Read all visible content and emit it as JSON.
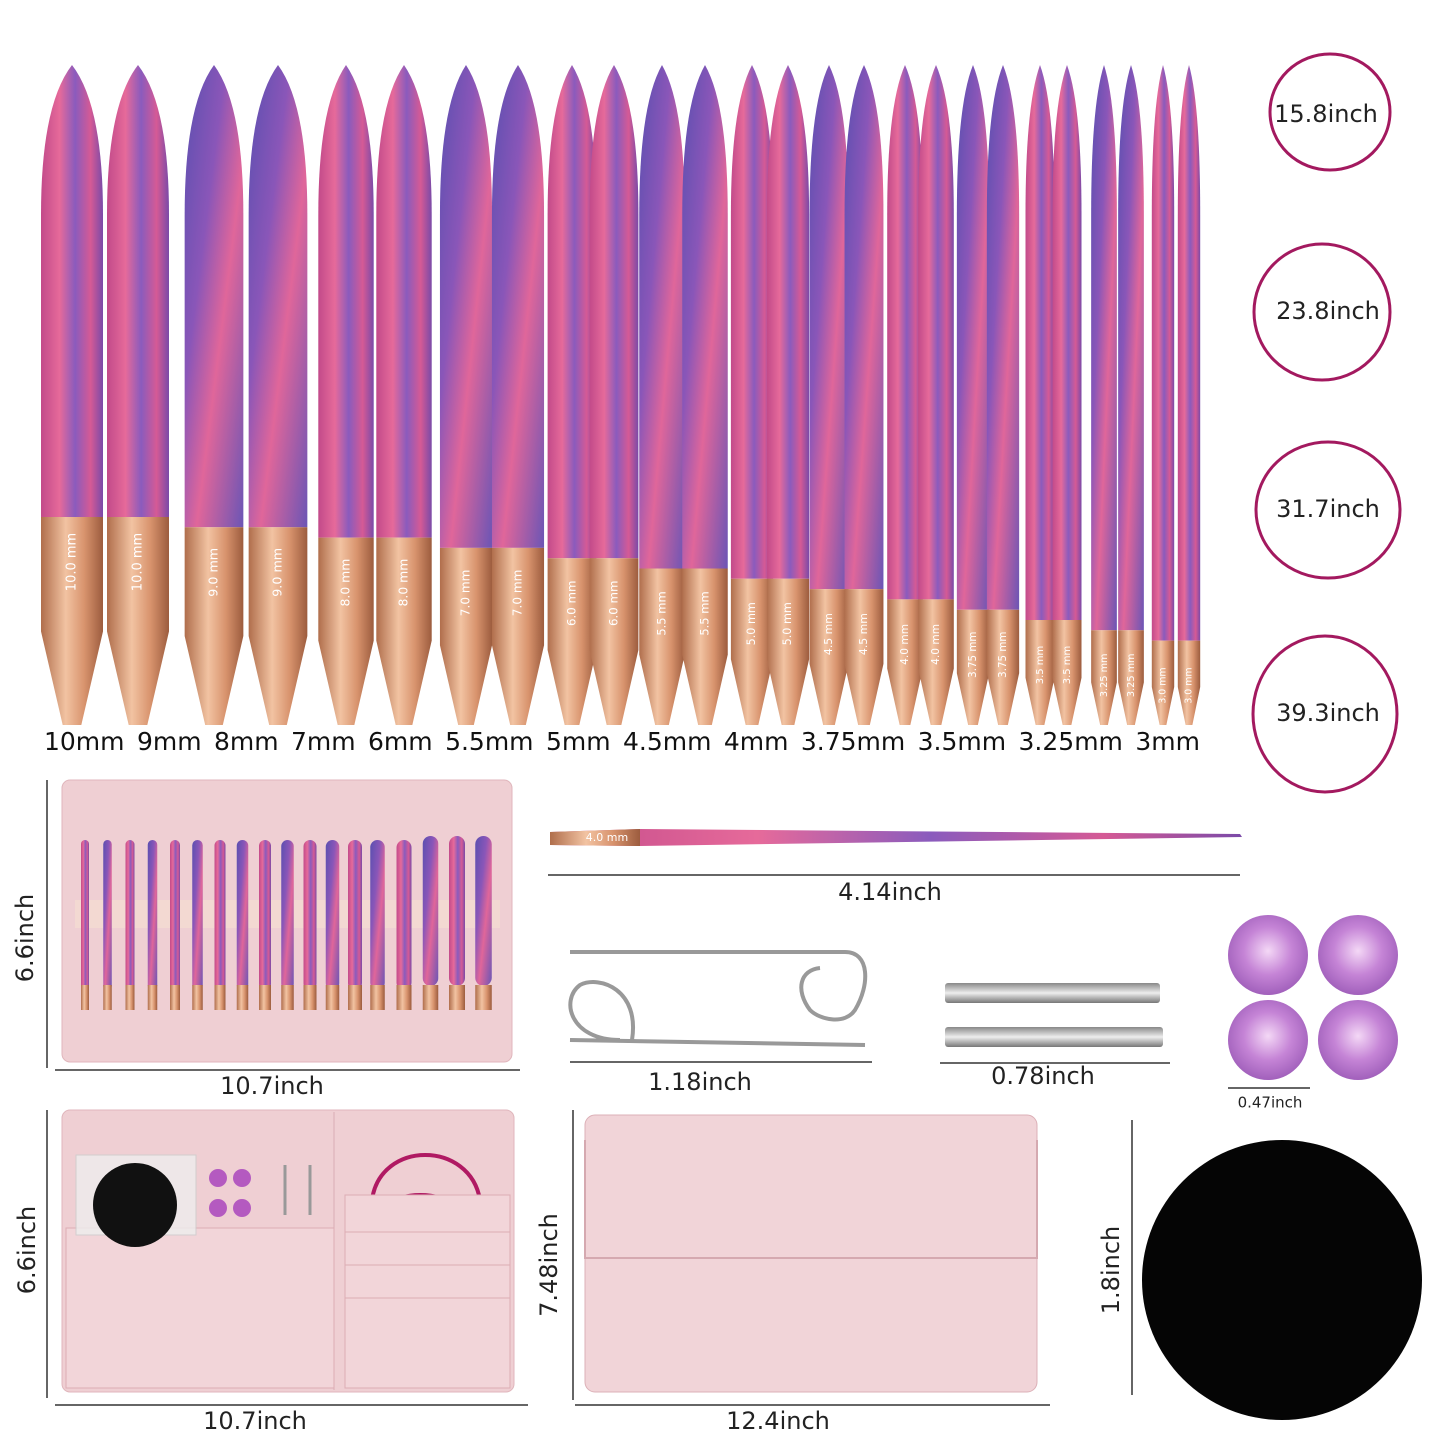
{
  "needle_tip_labels": [
    "10.0 mm",
    "9.0 mm",
    "8.0 mm",
    "7.0 mm",
    "6.0 mm",
    "5.5 mm",
    "5.0 mm",
    "4.5 mm",
    "4.0 mm",
    "3.75 mm",
    "3.5 mm",
    "3.25 mm",
    "3.0 mm"
  ],
  "needle_sizes": [
    "10mm",
    "9mm",
    "8mm",
    "7mm",
    "6mm",
    "5.5mm",
    "5mm",
    "4.5mm",
    "4mm",
    "3.75mm",
    "3.5mm",
    "3.25mm",
    "3mm"
  ],
  "cable_lengths": [
    "15.8inch",
    "23.8inch",
    "31.7inch",
    "39.3inch"
  ],
  "open_case": {
    "height": "6.6inch",
    "width": "10.7inch"
  },
  "single_needle": {
    "tip_label": "4.0 mm",
    "length": "4.14inch"
  },
  "stitch_holder": {
    "length": "1.18inch"
  },
  "connectors": {
    "length": "0.78inch"
  },
  "stoppers": {
    "diameter": "0.47inch"
  },
  "accessory_case": {
    "height": "6.6inch",
    "width": "10.7inch"
  },
  "closed_case": {
    "height": "7.48inch",
    "width": "12.4inch"
  },
  "felt_pad": {
    "size": "1.8inch"
  }
}
